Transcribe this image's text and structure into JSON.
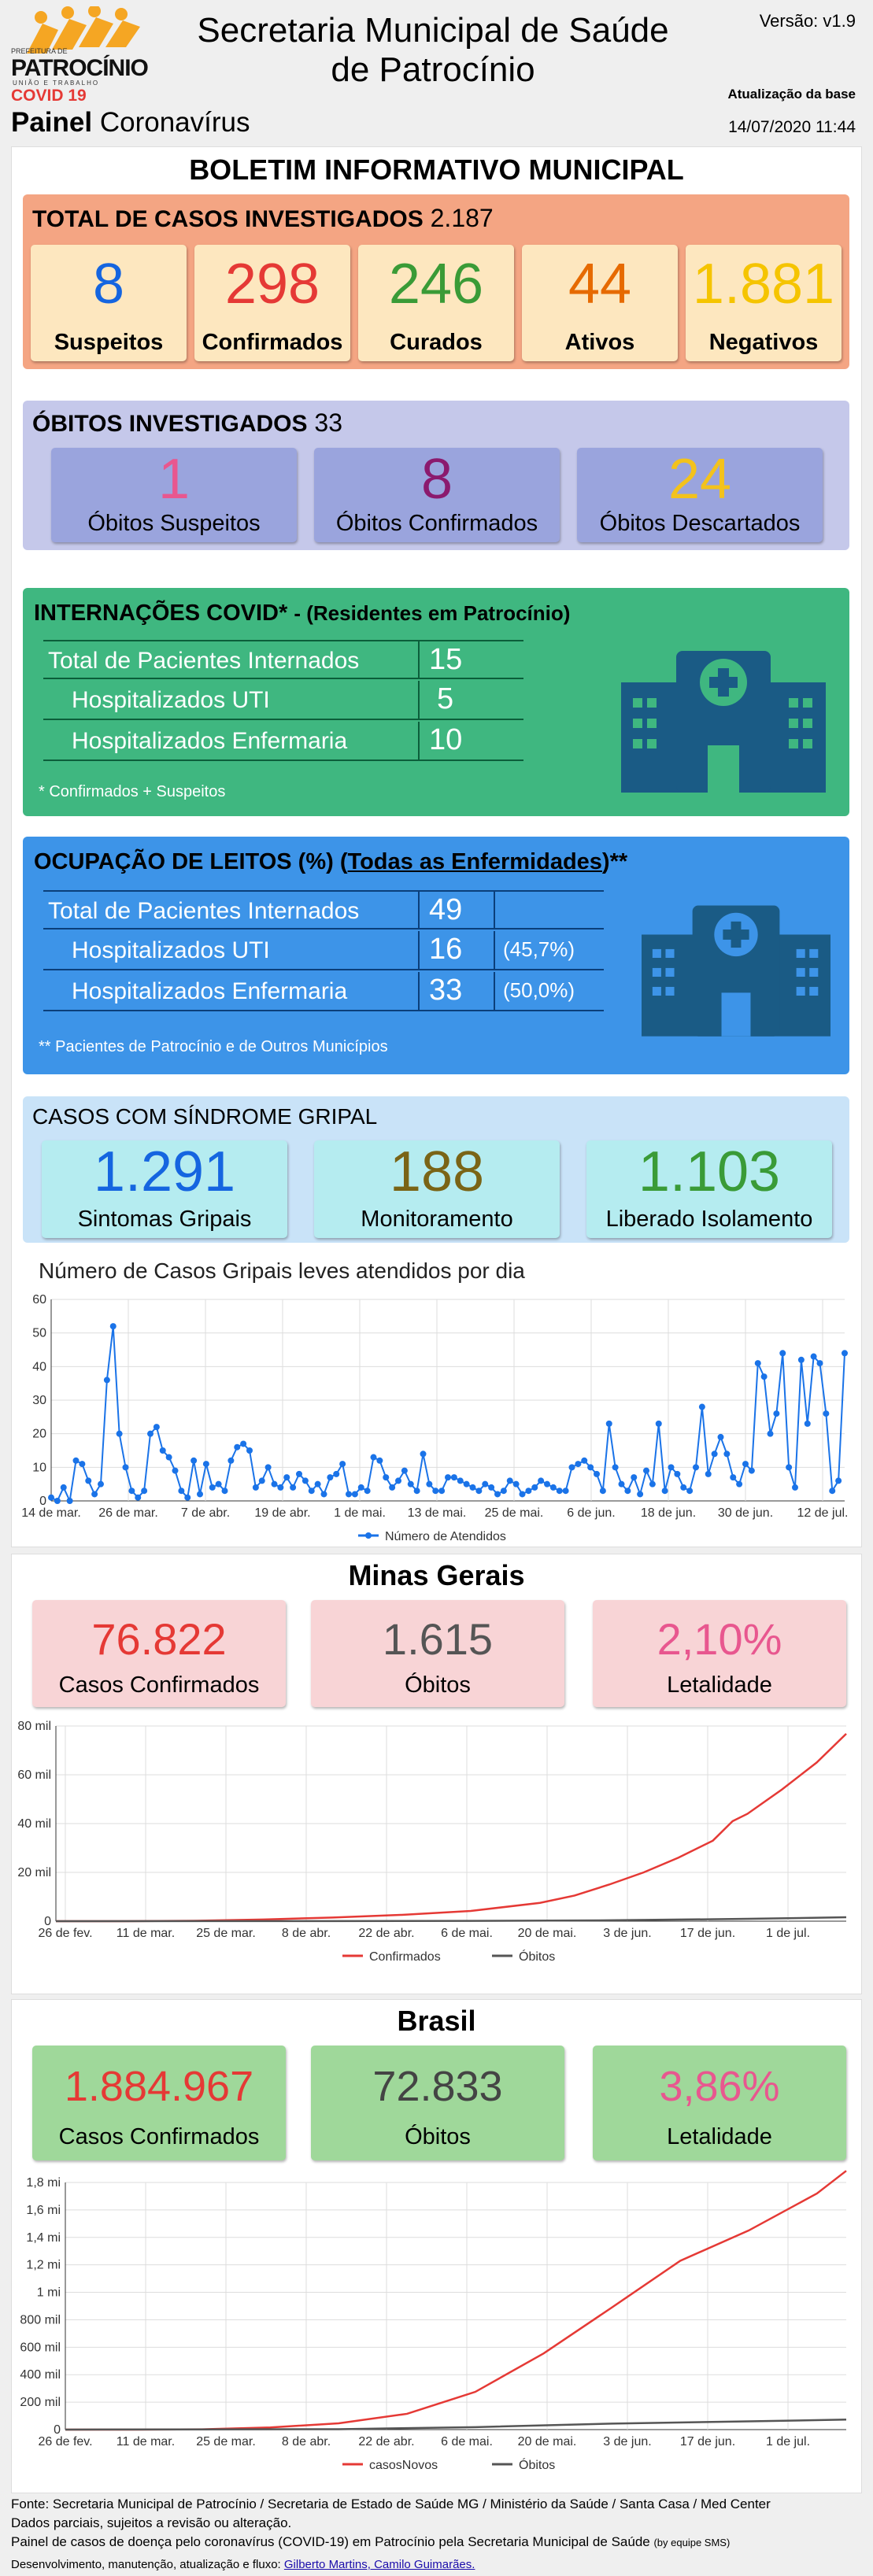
{
  "header": {
    "logo_text": "PATROCÍNIO",
    "logo_sub": "UNIÃO E TRABALHO",
    "logo_top": "PREFEITURA DE",
    "covid": "COVID 19",
    "painel_bold": "Painel",
    "painel": "Coronavírus",
    "title_line1": "Secretaria Municipal de Saúde",
    "title_line2": "de Patrocínio",
    "versao": "Versão: v1.9",
    "atualizacao_label": "Atualização da base",
    "atualizacao": "14/07/2020 11:44"
  },
  "boletim": {
    "title": "BOLETIM INFORMATIVO MUNICIPAL",
    "casos_label": "TOTAL DE CASOS INVESTIGADOS",
    "casos_total": "2.187",
    "cards": [
      {
        "value": "8",
        "label": "Suspeitos",
        "color": "#1565e0"
      },
      {
        "value": "298",
        "label": "Confirmados",
        "color": "#e53935"
      },
      {
        "value": "246",
        "label": "Curados",
        "color": "#3a9b37"
      },
      {
        "value": "44",
        "label": "Ativos",
        "color": "#e66a00"
      },
      {
        "value": "1.881",
        "label": "Negativos",
        "color": "#f5c400"
      }
    ],
    "obitos_label": "ÓBITOS INVESTIGADOS",
    "obitos_total": "33",
    "obitos": [
      {
        "value": "1",
        "label": "Óbitos Suspeitos",
        "color": "#e8578f"
      },
      {
        "value": "8",
        "label": "Óbitos Confirmados",
        "color": "#8b1a6e"
      },
      {
        "value": "24",
        "label": "Óbitos Descartados",
        "color": "#f3c21c"
      }
    ]
  },
  "internacoes": {
    "title_bold": "INTERNAÇÕES COVID*",
    "title_rest": "- (Residentes em Patrocínio)",
    "rows": [
      {
        "label": "Total de Pacientes Internados",
        "value": "15"
      },
      {
        "label": "Hospitalizados UTI",
        "value": "5"
      },
      {
        "label": "Hospitalizados Enfermaria",
        "value": "10"
      }
    ],
    "note": "* Confirmados + Suspeitos"
  },
  "leitos": {
    "title_bold": "OCUPAÇÃO DE LEITOS (%)",
    "title_link": "Todas as Enfermidades",
    "title_end": "**",
    "rows": [
      {
        "label": "Total de Pacientes Internados",
        "value": "49",
        "pct": ""
      },
      {
        "label": "Hospitalizados UTI",
        "value": "16",
        "pct": "(45,7%)"
      },
      {
        "label": "Hospitalizados Enfermaria",
        "value": "33",
        "pct": "(50,0%)"
      }
    ],
    "note": "** Pacientes de Patrocínio e de Outros Municípios"
  },
  "gripal": {
    "title": "CASOS COM SÍNDROME GRIPAL",
    "cards": [
      {
        "value": "1.291",
        "label": "Sintomas Gripais",
        "color": "#1565e0"
      },
      {
        "value": "188",
        "label": "Monitoramento",
        "color": "#7a6416"
      },
      {
        "value": "1.103",
        "label": "Liberado Isolamento",
        "color": "#3a9b37"
      }
    ]
  },
  "chart_data": [
    {
      "type": "line",
      "title": "Número de Casos Gripais leves atendidos por dia",
      "ylim": [
        0,
        60
      ],
      "yticks": [
        "0",
        "10",
        "20",
        "30",
        "40",
        "50",
        "60"
      ],
      "xticks": [
        "14 de mar.",
        "26 de mar.",
        "7 de abr.",
        "19 de abr.",
        "1 de mai.",
        "13 de mai.",
        "25 de mai.",
        "6 de jun.",
        "18 de jun.",
        "30 de jun.",
        "12 de jul."
      ],
      "series": [
        {
          "name": "Número de Atendidos",
          "color": "#1a73e8",
          "values": [
            1,
            0,
            4,
            0,
            12,
            11,
            6,
            2,
            5,
            36,
            52,
            20,
            10,
            3,
            1,
            3,
            20,
            22,
            15,
            13,
            9,
            3,
            1,
            12,
            2,
            11,
            4,
            5,
            3,
            12,
            16,
            17,
            15,
            4,
            6,
            10,
            5,
            4,
            7,
            4,
            8,
            6,
            3,
            5,
            2,
            7,
            8,
            11,
            2,
            2,
            4,
            3,
            13,
            12,
            7,
            4,
            6,
            9,
            5,
            3,
            14,
            5,
            3,
            3,
            7,
            7,
            6,
            5,
            4,
            3,
            5,
            4,
            2,
            3,
            6,
            5,
            2,
            3,
            4,
            6,
            5,
            4,
            3,
            3,
            10,
            11,
            12,
            10,
            8,
            3,
            23,
            10,
            5,
            3,
            7,
            2,
            9,
            5,
            23,
            3,
            10,
            8,
            4,
            3,
            10,
            28,
            8,
            14,
            19,
            14,
            7,
            5,
            11,
            9,
            41,
            37,
            20,
            26,
            44,
            10,
            4,
            42,
            23,
            43,
            41,
            26,
            3,
            6,
            44
          ]
        }
      ]
    },
    {
      "type": "line",
      "title": "Minas Gerais",
      "ylim": [
        0,
        80000
      ],
      "yticks": [
        "0",
        "20 mil",
        "40 mil",
        "60 mil",
        "80 mil"
      ],
      "xticks": [
        "26 de fev.",
        "11 de mar.",
        "25 de mar.",
        "8 de abr.",
        "22 de abr.",
        "6 de mai.",
        "20 de mai.",
        "3 de jun.",
        "17 de jun.",
        "1 de jul."
      ],
      "series": [
        {
          "name": "Confirmados",
          "color": "#e53935",
          "points": [
            [
              0,
              0
            ],
            [
              14,
              10
            ],
            [
              28,
              150
            ],
            [
              42,
              700
            ],
            [
              56,
              1500
            ],
            [
              70,
              2600
            ],
            [
              84,
              4200
            ],
            [
              98,
              7500
            ],
            [
              105,
              10500
            ],
            [
              112,
              15000
            ],
            [
              119,
              20000
            ],
            [
              126,
              26000
            ],
            [
              133,
              33000
            ],
            [
              137,
              41000
            ],
            [
              140,
              44000
            ],
            [
              147,
              54000
            ],
            [
              154,
              65000
            ],
            [
              160,
              76822
            ]
          ]
        },
        {
          "name": "Óbitos",
          "color": "#555555",
          "points": [
            [
              0,
              0
            ],
            [
              56,
              60
            ],
            [
              84,
              130
            ],
            [
              112,
              350
            ],
            [
              140,
              950
            ],
            [
              160,
              1615
            ]
          ]
        }
      ]
    },
    {
      "type": "line",
      "title": "Brasil",
      "ylim": [
        0,
        1800000
      ],
      "yticks": [
        "0",
        "200 mil",
        "400 mil",
        "600 mil",
        "800 mil",
        "1 mi",
        "1,2 mi",
        "1,4 mi",
        "1,6 mi",
        "1,8 mi"
      ],
      "xticks": [
        "26 de fev.",
        "11 de mar.",
        "25 de mar.",
        "8 de abr.",
        "22 de abr.",
        "6 de mai.",
        "20 de mai.",
        "3 de jun.",
        "17 de jun.",
        "1 de jul."
      ],
      "series": [
        {
          "name": "casosNovos",
          "color": "#e53935",
          "points": [
            [
              0,
              0
            ],
            [
              14,
              50
            ],
            [
              28,
              2500
            ],
            [
              42,
              16000
            ],
            [
              56,
              46000
            ],
            [
              70,
              115000
            ],
            [
              84,
              275000
            ],
            [
              98,
              555000
            ],
            [
              112,
              890000
            ],
            [
              126,
              1230000
            ],
            [
              140,
              1450000
            ],
            [
              154,
              1720000
            ],
            [
              160,
              1884967
            ]
          ]
        },
        {
          "name": "Óbitos",
          "color": "#555555",
          "points": [
            [
              0,
              0
            ],
            [
              56,
              3000
            ],
            [
              84,
              18000
            ],
            [
              112,
              44000
            ],
            [
              140,
              60000
            ],
            [
              160,
              72833
            ]
          ]
        }
      ]
    }
  ],
  "minas": {
    "title": "Minas Gerais",
    "cards": [
      {
        "value": "76.822",
        "label": "Casos Confirmados",
        "color": "#e53935"
      },
      {
        "value": "1.615",
        "label": "Óbitos",
        "color": "#555555"
      },
      {
        "value": "2,10%",
        "label": "Letalidade",
        "color": "#e8578f"
      }
    ]
  },
  "brasil": {
    "title": "Brasil",
    "cards": [
      {
        "value": "1.884.967",
        "label": "Casos Confirmados",
        "color": "#e53935"
      },
      {
        "value": "72.833",
        "label": "Óbitos",
        "color": "#444444"
      },
      {
        "value": "3,86%",
        "label": "Letalidade",
        "color": "#e8578f"
      }
    ]
  },
  "footer": {
    "line1": "Fonte: Secretaria Municipal de Patrocínio / Secretaria de Estado de Saúde MG / Ministério da Saúde / Santa Casa / Med Center",
    "line2": "Dados parciais, sujeitos a revisão ou alteração.",
    "line3": "Painel de casos de doença pelo coronavírus (COVID-19) em Patrocínio pela Secretaria Municipal de Saúde",
    "line3_small": "(by equipe SMS)",
    "line4": "Desenvolvimento, manutenção, atualização e fluxo:",
    "line4_link": "Gilberto Martins, Camilo Guimarães."
  }
}
